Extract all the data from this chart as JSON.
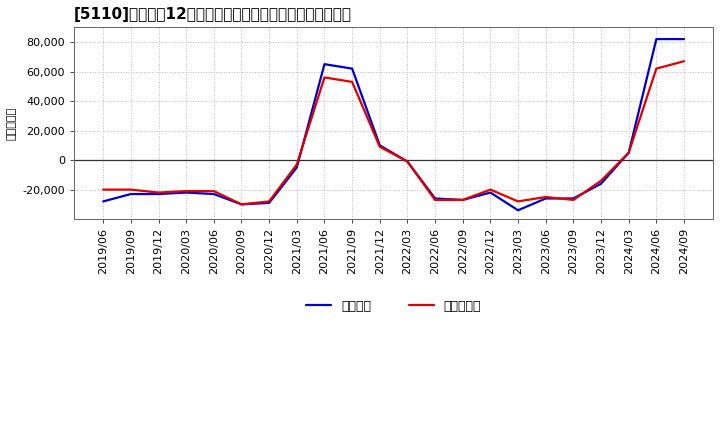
{
  "title": "[5110]　利益だ12か月移動合計の対前年同期増減額の推移",
  "ylabel": "（百万円）",
  "line1_label": "経常利益",
  "line2_label": "当期純利益",
  "line1_color": "#0000cc",
  "line2_color": "#dd0000",
  "background_color": "#ffffff",
  "plot_bg_color": "#ffffff",
  "x_labels": [
    "2019/06",
    "2019/09",
    "2019/12",
    "2020/03",
    "2020/06",
    "2020/09",
    "2020/12",
    "2021/03",
    "2021/06",
    "2021/09",
    "2021/12",
    "2022/03",
    "2022/06",
    "2022/09",
    "2022/12",
    "2023/03",
    "2023/06",
    "2023/09",
    "2023/12",
    "2024/03",
    "2024/06",
    "2024/09"
  ],
  "y_keijo": [
    -28000,
    -23000,
    -23000,
    -22000,
    -23000,
    -30000,
    -29000,
    -5000,
    65000,
    62000,
    10000,
    -1000,
    -26000,
    -27000,
    -22000,
    -34000,
    -26000,
    -26000,
    -16000,
    5000,
    82000,
    82000
  ],
  "y_junri": [
    -20000,
    -20000,
    -22000,
    -21000,
    -21000,
    -30000,
    -28000,
    -3000,
    56000,
    53000,
    9000,
    -1000,
    -27000,
    -27000,
    -20000,
    -28000,
    -25000,
    -27000,
    -14000,
    5000,
    62000,
    67000
  ],
  "ylim": [
    -40000,
    90000
  ],
  "yticks": [
    -20000,
    0,
    20000,
    40000,
    60000,
    80000
  ],
  "grid_color": "#bbbbbb",
  "linewidth": 1.6,
  "title_fontsize": 11,
  "tick_fontsize": 8,
  "ylabel_fontsize": 8,
  "legend_fontsize": 9
}
